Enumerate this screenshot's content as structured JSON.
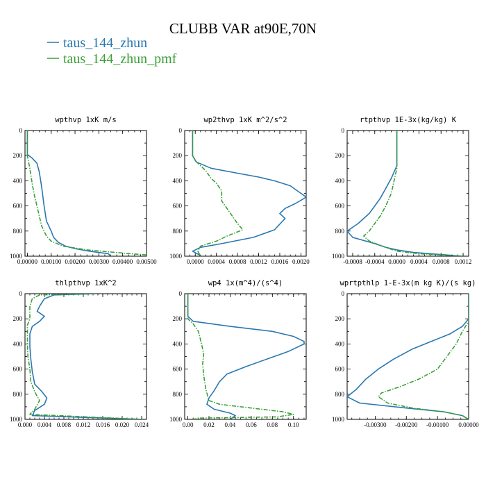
{
  "title": "CLUBB VAR at90E,70N",
  "colors": {
    "series1": "#2a78b0",
    "series2": "#3aa036"
  },
  "legend": [
    {
      "label": "taus_144_zhun",
      "color": "#2a78b0",
      "style": "solid"
    },
    {
      "label": "taus_144_zhun_pmf",
      "color": "#3aa036",
      "style": "dashdot"
    }
  ],
  "chart_data": [
    {
      "type": "line",
      "title": "wpthvp  1xK m/s",
      "xlim": [
        -0.0001,
        0.005
      ],
      "ylim": [
        0,
        1000
      ],
      "y_inverted": true,
      "xticks": [
        "0.00000",
        "0.00100",
        "0.00200",
        "0.00300",
        "0.00400",
        "0.00500"
      ],
      "xtick_values": [
        0,
        0.001,
        0.002,
        0.003,
        0.004,
        0.005
      ],
      "yticks": [
        "0",
        "200",
        "400",
        "600",
        "800",
        "1000"
      ],
      "series": [
        {
          "name": "taus_144_zhun",
          "points": [
            [
              0,
              0
            ],
            [
              0,
              100
            ],
            [
              0,
              190
            ],
            [
              0.0002,
              220
            ],
            [
              0.0004,
              260
            ],
            [
              0.0005,
              330
            ],
            [
              0.0006,
              450
            ],
            [
              0.0007,
              600
            ],
            [
              0.0008,
              720
            ],
            [
              0.001,
              800
            ],
            [
              0.0011,
              850
            ],
            [
              0.0013,
              890
            ],
            [
              0.0016,
              920
            ],
            [
              0.002,
              940
            ],
            [
              0.0026,
              960
            ],
            [
              0.0034,
              980
            ],
            [
              0.0035,
              1000
            ]
          ]
        },
        {
          "name": "taus_144_zhun_pmf",
          "points": [
            [
              0,
              0
            ],
            [
              0,
              200
            ],
            [
              0.0001,
              300
            ],
            [
              0.0002,
              420
            ],
            [
              0.0003,
              520
            ],
            [
              0.0004,
              600
            ],
            [
              0.0005,
              680
            ],
            [
              0.0006,
              760
            ],
            [
              0.0008,
              840
            ],
            [
              0.001,
              880
            ],
            [
              0.0015,
              920
            ],
            [
              0.0025,
              950
            ],
            [
              0.004,
              975
            ],
            [
              0.005,
              990
            ],
            [
              0.005,
              1000
            ]
          ]
        }
      ]
    },
    {
      "type": "line",
      "title": "wp2thvp  1xK m^2/s^2",
      "xlim": [
        -0.0002,
        0.0021
      ],
      "ylim": [
        0,
        1000
      ],
      "y_inverted": true,
      "xticks": [
        "0.0000",
        "0.0004",
        "0.0008",
        "0.0012",
        "0.0016",
        "0.0020"
      ],
      "xtick_values": [
        0,
        0.0004,
        0.0008,
        0.0012,
        0.0016,
        0.002
      ],
      "yticks": [
        "0",
        "200",
        "400",
        "600",
        "800",
        "1000"
      ],
      "series": [
        {
          "name": "taus_144_zhun",
          "points": [
            [
              -5e-05,
              0
            ],
            [
              -5e-05,
              150
            ],
            [
              -5e-05,
              200
            ],
            [
              2e-05,
              250
            ],
            [
              0.0003,
              300
            ],
            [
              0.0008,
              340
            ],
            [
              0.0012,
              370
            ],
            [
              0.0015,
              400
            ],
            [
              0.0018,
              440
            ],
            [
              0.002,
              500
            ],
            [
              0.0021,
              530
            ],
            [
              0.0019,
              580
            ],
            [
              0.0017,
              620
            ],
            [
              0.0016,
              660
            ],
            [
              0.0017,
              700
            ],
            [
              0.0015,
              790
            ],
            [
              0.0011,
              850
            ],
            [
              0.0005,
              900
            ],
            [
              0.0001,
              930
            ],
            [
              -5e-05,
              960
            ],
            [
              8e-05,
              990
            ],
            [
              0.0001,
              1000
            ]
          ]
        },
        {
          "name": "taus_144_zhun_pmf",
          "points": [
            [
              -5e-05,
              0
            ],
            [
              -5e-05,
              200
            ],
            [
              0,
              240
            ],
            [
              0.0002,
              320
            ],
            [
              0.0003,
              380
            ],
            [
              0.0004,
              420
            ],
            [
              0.0005,
              480
            ],
            [
              0.0005,
              560
            ],
            [
              0.0006,
              620
            ],
            [
              0.0007,
              680
            ],
            [
              0.0008,
              740
            ],
            [
              0.0009,
              790
            ],
            [
              0.0006,
              840
            ],
            [
              0.0004,
              880
            ],
            [
              0.0001,
              920
            ],
            [
              5e-05,
              960
            ],
            [
              0.0001,
              1000
            ]
          ]
        }
      ]
    },
    {
      "type": "line",
      "title": "rtpthvp  1E-3x(kg/kg) K",
      "xlim": [
        -0.0009,
        0.0013
      ],
      "ylim": [
        0,
        1000
      ],
      "y_inverted": true,
      "xticks": [
        "-0.0008",
        "-0.0004",
        "0.0000",
        "0.0004",
        "0.0008",
        "0.0012"
      ],
      "xtick_values": [
        -0.0008,
        -0.0004,
        0,
        0.0004,
        0.0008,
        0.0012
      ],
      "yticks": [
        "0",
        "200",
        "400",
        "600",
        "800",
        "1000"
      ],
      "series": [
        {
          "name": "taus_144_zhun",
          "points": [
            [
              0,
              0
            ],
            [
              0,
              280
            ],
            [
              -0.0001,
              380
            ],
            [
              -0.0002,
              460
            ],
            [
              -0.0003,
              540
            ],
            [
              -0.0004,
              600
            ],
            [
              -0.0005,
              660
            ],
            [
              -0.0007,
              740
            ],
            [
              -0.0009,
              800
            ],
            [
              -0.0008,
              850
            ],
            [
              -0.0004,
              900
            ],
            [
              -0.0002,
              930
            ],
            [
              0,
              950
            ],
            [
              0.0003,
              970
            ],
            [
              0.0012,
              1000
            ]
          ]
        },
        {
          "name": "taus_144_zhun_pmf",
          "points": [
            [
              0,
              0
            ],
            [
              0,
              300
            ],
            [
              -5e-05,
              400
            ],
            [
              -0.0001,
              500
            ],
            [
              -0.0002,
              600
            ],
            [
              -0.0003,
              680
            ],
            [
              -0.0004,
              740
            ],
            [
              -0.0005,
              800
            ],
            [
              -0.0006,
              840
            ],
            [
              -0.0005,
              880
            ],
            [
              -0.0002,
              930
            ],
            [
              0,
              960
            ],
            [
              0.0004,
              980
            ],
            [
              0.0012,
              1000
            ]
          ]
        }
      ]
    },
    {
      "type": "line",
      "title": "thlpthvp  1xK^2",
      "xlim": [
        0,
        0.025
      ],
      "ylim": [
        0,
        1000
      ],
      "y_inverted": true,
      "xticks": [
        "0.000",
        "0.004",
        "0.008",
        "0.012",
        "0.016",
        "0.020",
        "0.024"
      ],
      "xtick_values": [
        0,
        0.004,
        0.008,
        0.012,
        0.016,
        0.02,
        0.024
      ],
      "yticks": [
        "0",
        "200",
        "400",
        "600",
        "800",
        "1000"
      ],
      "series": [
        {
          "name": "taus_144_zhun",
          "points": [
            [
              0.0145,
              0
            ],
            [
              0.006,
              10
            ],
            [
              0.004,
              40
            ],
            [
              0.003,
              100
            ],
            [
              0.0025,
              140
            ],
            [
              0.004,
              180
            ],
            [
              0.003,
              220
            ],
            [
              0.0015,
              260
            ],
            [
              0.001,
              320
            ],
            [
              0.001,
              420
            ],
            [
              0.0012,
              520
            ],
            [
              0.0015,
              620
            ],
            [
              0.002,
              720
            ],
            [
              0.0035,
              780
            ],
            [
              0.0045,
              830
            ],
            [
              0.004,
              880
            ],
            [
              0.002,
              930
            ],
            [
              0.0015,
              970
            ],
            [
              0.024,
              1000
            ]
          ]
        },
        {
          "name": "taus_144_zhun_pmf",
          "points": [
            [
              0.0145,
              0
            ],
            [
              0.003,
              10
            ],
            [
              0.0015,
              40
            ],
            [
              0.001,
              100
            ],
            [
              0.001,
              200
            ],
            [
              0.0005,
              250
            ],
            [
              0.0005,
              400
            ],
            [
              0.0006,
              500
            ],
            [
              0.001,
              600
            ],
            [
              0.0012,
              700
            ],
            [
              0.002,
              780
            ],
            [
              0.003,
              850
            ],
            [
              0.002,
              920
            ],
            [
              0.001,
              960
            ],
            [
              0.024,
              1000
            ]
          ]
        }
      ]
    },
    {
      "type": "line",
      "title": "wp4  1x(m^4)/(s^4)",
      "xlim": [
        -0.003,
        0.112
      ],
      "ylim": [
        0,
        1000
      ],
      "y_inverted": true,
      "xticks": [
        "0.00",
        "0.02",
        "0.04",
        "0.06",
        "0.08",
        "0.10"
      ],
      "xtick_values": [
        0,
        0.02,
        0.04,
        0.06,
        0.08,
        0.1
      ],
      "yticks": [
        "0",
        "200",
        "400",
        "600",
        "800",
        "1000"
      ],
      "series": [
        {
          "name": "taus_144_zhun",
          "points": [
            [
              0,
              0
            ],
            [
              0,
              180
            ],
            [
              0.005,
              220
            ],
            [
              0.04,
              260
            ],
            [
              0.08,
              300
            ],
            [
              0.1,
              340
            ],
            [
              0.11,
              380
            ],
            [
              0.11,
              400
            ],
            [
              0.095,
              460
            ],
            [
              0.075,
              520
            ],
            [
              0.055,
              580
            ],
            [
              0.037,
              640
            ],
            [
              0.03,
              700
            ],
            [
              0.025,
              770
            ],
            [
              0.02,
              830
            ],
            [
              0.018,
              880
            ],
            [
              0.025,
              920
            ],
            [
              0.04,
              950
            ],
            [
              0.045,
              970
            ],
            [
              0.04,
              1000
            ]
          ]
        },
        {
          "name": "taus_144_zhun_pmf",
          "points": [
            [
              0,
              0
            ],
            [
              0,
              200
            ],
            [
              0.005,
              240
            ],
            [
              0.01,
              300
            ],
            [
              0.013,
              400
            ],
            [
              0.015,
              480
            ],
            [
              0.014,
              560
            ],
            [
              0.015,
              650
            ],
            [
              0.017,
              760
            ],
            [
              0.02,
              850
            ],
            [
              0.03,
              880
            ],
            [
              0.06,
              910
            ],
            [
              0.09,
              940
            ],
            [
              0.1,
              960
            ],
            [
              0.085,
              980
            ],
            [
              0.01,
              990
            ],
            [
              0.005,
              1000
            ]
          ]
        }
      ]
    },
    {
      "type": "line",
      "title": "wprtpthlp  1-E-3x(m kg K)/(s kg)",
      "xlim": [
        -0.0039,
        0.0
      ],
      "ylim": [
        0,
        1000
      ],
      "y_inverted": true,
      "xticks": [
        "-0.00300",
        "-0.00200",
        "-0.00100",
        "0.00000"
      ],
      "xtick_values": [
        -0.003,
        -0.002,
        -0.001,
        0
      ],
      "yticks": [
        "0",
        "200",
        "400",
        "600",
        "800",
        "1000"
      ],
      "series": [
        {
          "name": "taus_144_zhun",
          "points": [
            [
              0,
              0
            ],
            [
              0,
              200
            ],
            [
              -0.0002,
              260
            ],
            [
              -0.0006,
              320
            ],
            [
              -0.0012,
              380
            ],
            [
              -0.0018,
              440
            ],
            [
              -0.0024,
              520
            ],
            [
              -0.0029,
              600
            ],
            [
              -0.0033,
              680
            ],
            [
              -0.0036,
              760
            ],
            [
              -0.0039,
              820
            ],
            [
              -0.0035,
              870
            ],
            [
              -0.002,
              910
            ],
            [
              -0.0008,
              940
            ],
            [
              -0.0002,
              970
            ],
            [
              0,
              1000
            ]
          ]
        },
        {
          "name": "taus_144_zhun_pmf",
          "points": [
            [
              0,
              0
            ],
            [
              0,
              220
            ],
            [
              -0.0002,
              300
            ],
            [
              -0.0004,
              400
            ],
            [
              -0.0007,
              500
            ],
            [
              -0.001,
              600
            ],
            [
              -0.0016,
              680
            ],
            [
              -0.0022,
              740
            ],
            [
              -0.0028,
              790
            ],
            [
              -0.0029,
              820
            ],
            [
              -0.0026,
              870
            ],
            [
              -0.0018,
              910
            ],
            [
              -0.0008,
              940
            ],
            [
              -0.0002,
              970
            ],
            [
              0,
              1000
            ]
          ]
        }
      ]
    }
  ]
}
